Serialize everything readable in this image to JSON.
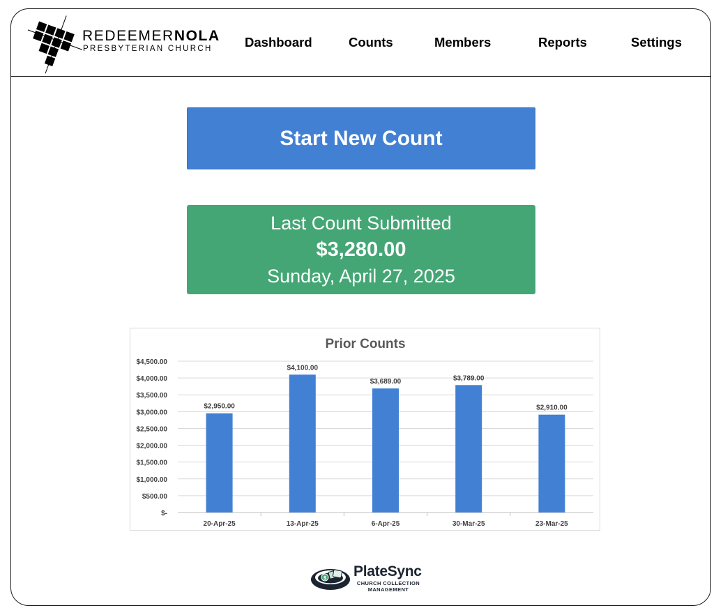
{
  "header": {
    "logo": {
      "line1_a": "REDEEMER",
      "line1_b": "NOLA",
      "line2": "PRESBYTERIAN CHURCH"
    },
    "nav": [
      {
        "label": "Dashboard"
      },
      {
        "label": "Counts"
      },
      {
        "label": "Members"
      },
      {
        "label": "Reports"
      },
      {
        "label": "Settings"
      }
    ]
  },
  "main": {
    "start_button": "Start New Count",
    "last_count": {
      "title": "Last Count Submitted",
      "amount": "$3,280.00",
      "date": "Sunday, April 27, 2025"
    }
  },
  "chart_data": {
    "type": "bar",
    "title": "Prior Counts",
    "categories": [
      "20-Apr-25",
      "13-Apr-25",
      "6-Apr-25",
      "30-Mar-25",
      "23-Mar-25"
    ],
    "values": [
      2950,
      4100,
      3689,
      3789,
      2910
    ],
    "data_labels": [
      "$2,950.00",
      "$4,100.00",
      "$3,689.00",
      "$3,789.00",
      "$2,910.00"
    ],
    "y_ticks": [
      0,
      500,
      1000,
      1500,
      2000,
      2500,
      3000,
      3500,
      4000,
      4500
    ],
    "y_tick_labels": [
      "$-",
      "$500.00",
      "$1,000.00",
      "$1,500.00",
      "$2,000.00",
      "$2,500.00",
      "$3,000.00",
      "$3,500.00",
      "$4,000.00",
      "$4,500.00"
    ],
    "ylim": [
      0,
      4500
    ],
    "grid": true,
    "bar_color": "#4280d3"
  },
  "footer": {
    "brand_name": "PlateSync",
    "brand_sub1": "CHURCH COLLECTION",
    "brand_sub2": "MANAGEMENT",
    "brand_icon": "collection-plate-icon"
  },
  "colors": {
    "primary": "#4280d3",
    "success": "#45a675",
    "text": "#000000"
  }
}
